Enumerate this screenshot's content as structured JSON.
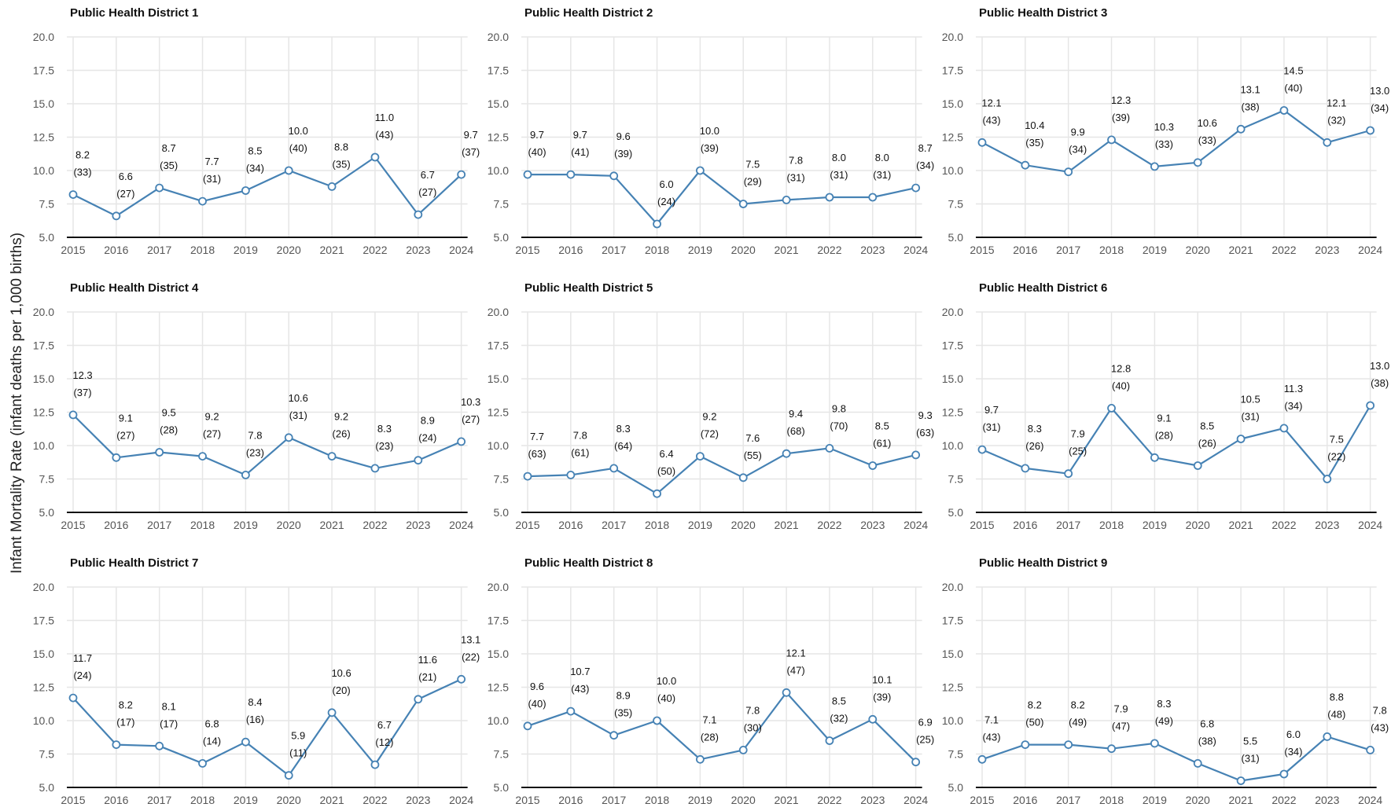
{
  "chart_data": {
    "type": "line",
    "layout": "3x3 small multiples",
    "ylabel": "Infant Mortality Rate (infant deaths per 1,000 births)",
    "xlabel": "",
    "ylim": [
      5,
      20
    ],
    "yticks": [
      "5.0",
      "7.5",
      "10.0",
      "12.5",
      "15.0",
      "17.5",
      "20.0"
    ],
    "years": [
      "2015",
      "2016",
      "2017",
      "2018",
      "2019",
      "2020",
      "2021",
      "2022",
      "2023",
      "2024"
    ],
    "grid": true,
    "line_color": "#4682b4",
    "panels": [
      {
        "title": "Public Health District 1",
        "rates": [
          8.2,
          6.6,
          8.7,
          7.7,
          8.5,
          10.0,
          8.8,
          11.0,
          6.7,
          9.7
        ],
        "rate_labels": [
          "8.2",
          "6.6",
          "8.7",
          "7.7",
          "8.5",
          "10.0",
          "8.8",
          "11.0",
          "6.7",
          "9.7"
        ],
        "deaths_labels": [
          "(33)",
          "(27)",
          "(35)",
          "(31)",
          "(34)",
          "(40)",
          "(35)",
          "(43)",
          "(27)",
          "(37)"
        ]
      },
      {
        "title": "Public Health District 2",
        "rates": [
          9.7,
          9.7,
          9.6,
          6.0,
          10.0,
          7.5,
          7.8,
          8.0,
          8.0,
          8.7
        ],
        "rate_labels": [
          "9.7",
          "9.7",
          "9.6",
          "6.0",
          "10.0",
          "7.5",
          "7.8",
          "8.0",
          "8.0",
          "8.7"
        ],
        "deaths_labels": [
          "(40)",
          "(41)",
          "(39)",
          "(24)",
          "(39)",
          "(29)",
          "(31)",
          "(31)",
          "(31)",
          "(34)"
        ]
      },
      {
        "title": "Public Health District 3",
        "rates": [
          12.1,
          10.4,
          9.9,
          12.3,
          10.3,
          10.6,
          13.1,
          14.5,
          12.1,
          13.0
        ],
        "rate_labels": [
          "12.1",
          "10.4",
          "9.9",
          "12.3",
          "10.3",
          "10.6",
          "13.1",
          "14.5",
          "12.1",
          "13.0"
        ],
        "deaths_labels": [
          "(43)",
          "(35)",
          "(34)",
          "(39)",
          "(33)",
          "(33)",
          "(38)",
          "(40)",
          "(32)",
          "(34)"
        ]
      },
      {
        "title": "Public Health District 4",
        "rates": [
          12.3,
          9.1,
          9.5,
          9.2,
          7.8,
          10.6,
          9.2,
          8.3,
          8.9,
          10.3
        ],
        "rate_labels": [
          "12.3",
          "9.1",
          "9.5",
          "9.2",
          "7.8",
          "10.6",
          "9.2",
          "8.3",
          "8.9",
          "10.3"
        ],
        "deaths_labels": [
          "(37)",
          "(27)",
          "(28)",
          "(27)",
          "(23)",
          "(31)",
          "(26)",
          "(23)",
          "(24)",
          "(27)"
        ]
      },
      {
        "title": "Public Health District 5",
        "rates": [
          7.7,
          7.8,
          8.3,
          6.4,
          9.2,
          7.6,
          9.4,
          9.8,
          8.5,
          9.3
        ],
        "rate_labels": [
          "7.7",
          "7.8",
          "8.3",
          "6.4",
          "9.2",
          "7.6",
          "9.4",
          "9.8",
          "8.5",
          "9.3"
        ],
        "deaths_labels": [
          "(63)",
          "(61)",
          "(64)",
          "(50)",
          "(72)",
          "(55)",
          "(68)",
          "(70)",
          "(61)",
          "(63)"
        ]
      },
      {
        "title": "Public Health District 6",
        "rates": [
          9.7,
          8.3,
          7.9,
          12.8,
          9.1,
          8.5,
          10.5,
          11.3,
          7.5,
          13.0
        ],
        "rate_labels": [
          "9.7",
          "8.3",
          "7.9",
          "12.8",
          "9.1",
          "8.5",
          "10.5",
          "11.3",
          "7.5",
          "13.0"
        ],
        "deaths_labels": [
          "(31)",
          "(26)",
          "(25)",
          "(40)",
          "(28)",
          "(26)",
          "(31)",
          "(34)",
          "(22)",
          "(38)"
        ]
      },
      {
        "title": "Public Health District 7",
        "rates": [
          11.7,
          8.2,
          8.1,
          6.8,
          8.4,
          5.9,
          10.6,
          6.7,
          11.6,
          13.1
        ],
        "rate_labels": [
          "11.7",
          "8.2",
          "8.1",
          "6.8",
          "8.4",
          "5.9",
          "10.6",
          "6.7",
          "11.6",
          "13.1"
        ],
        "deaths_labels": [
          "(24)",
          "(17)",
          "(17)",
          "(14)",
          "(16)",
          "(11)",
          "(20)",
          "(12)",
          "(21)",
          "(22)"
        ]
      },
      {
        "title": "Public Health District 8",
        "rates": [
          9.6,
          10.7,
          8.9,
          10.0,
          7.1,
          7.8,
          12.1,
          8.5,
          10.1,
          6.9
        ],
        "rate_labels": [
          "9.6",
          "10.7",
          "8.9",
          "10.0",
          "7.1",
          "7.8",
          "12.1",
          "8.5",
          "10.1",
          "6.9"
        ],
        "deaths_labels": [
          "(40)",
          "(43)",
          "(35)",
          "(40)",
          "(28)",
          "(30)",
          "(47)",
          "(32)",
          "(39)",
          "(25)"
        ]
      },
      {
        "title": "Public Health District 9",
        "rates": [
          7.1,
          8.2,
          8.2,
          7.9,
          8.3,
          6.8,
          5.5,
          6.0,
          8.8,
          7.8
        ],
        "rate_labels": [
          "7.1",
          "8.2",
          "8.2",
          "7.9",
          "8.3",
          "6.8",
          "5.5",
          "6.0",
          "8.8",
          "7.8"
        ],
        "deaths_labels": [
          "(43)",
          "(50)",
          "(49)",
          "(47)",
          "(49)",
          "(38)",
          "(31)",
          "(34)",
          "(48)",
          "(43)"
        ]
      }
    ]
  }
}
